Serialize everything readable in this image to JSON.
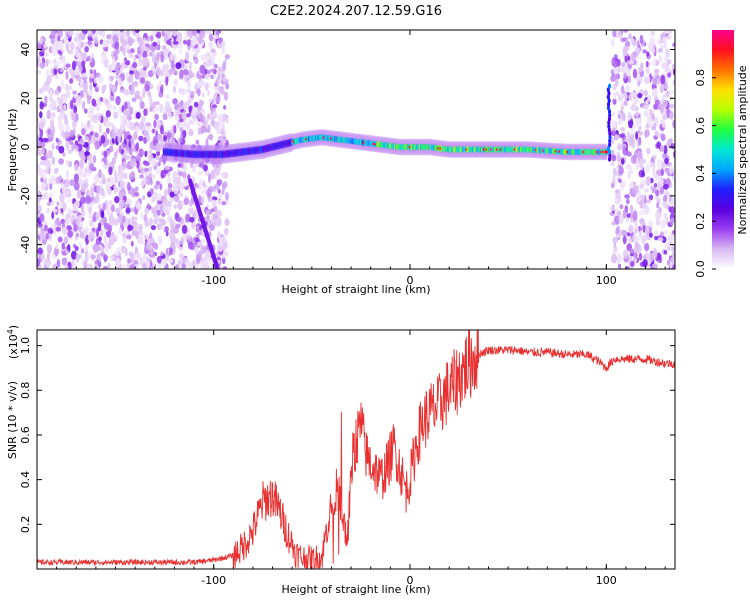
{
  "figure_title": "C2E2.2024.207.12.59.G16",
  "chart_data": [
    {
      "type": "heatmap",
      "title": "",
      "xlabel": "Height of straight line (km)",
      "ylabel": "Frequency (Hz)",
      "xlim": [
        -190,
        135
      ],
      "ylim": [
        -50,
        48
      ],
      "xticks": [
        -100,
        0,
        100
      ],
      "xtick_labels": [
        "-100",
        "0",
        "100"
      ],
      "yticks": [
        -40,
        -20,
        0,
        20,
        40
      ],
      "ytick_labels": [
        "-40",
        "-20",
        "0",
        "20",
        "40"
      ],
      "colorbar": {
        "label": "Normalized spectral amplitude",
        "range": [
          0,
          1
        ],
        "ticks": [
          0.0,
          0.2,
          0.4,
          0.6,
          0.8
        ],
        "tick_labels": [
          "0.0",
          "0.2",
          "0.4",
          "0.6",
          "0.8"
        ],
        "colormap": [
          "#ffffff",
          "#d9b8f2",
          "#9a3ff0",
          "#5a00e0",
          "#1f1fff",
          "#00a8ff",
          "#00e8d0",
          "#20ff40",
          "#b8ff00",
          "#ffe000",
          "#ff7000",
          "#ff1020",
          "#ff0090"
        ]
      },
      "ridge": {
        "x": [
          -125,
          -110,
          -95,
          -85,
          -75,
          -65,
          -55,
          -45,
          -35,
          -25,
          -15,
          -5,
          0,
          10,
          20,
          40,
          60,
          80,
          95,
          100
        ],
        "y": [
          -2,
          -3,
          -3,
          -2,
          -1,
          1,
          3,
          4,
          3,
          2,
          1,
          0,
          0,
          0,
          -1,
          -1,
          -1,
          -2,
          -2,
          -2
        ]
      },
      "grid": false,
      "legend": "none"
    },
    {
      "type": "line",
      "title": "",
      "xlabel": "Height of straight line (km)",
      "ylabel": "SNR (10 * v/v)",
      "ylabel_multiplier": "(x10",
      "ylabel_multiplier_exp": "4",
      "ylabel_multiplier_close": ")",
      "xlim": [
        -190,
        135
      ],
      "ylim": [
        0,
        1.07
      ],
      "xticks": [
        -100,
        0,
        100
      ],
      "xtick_labels": [
        "-100",
        "0",
        "100"
      ],
      "yticks": [
        0.2,
        0.4,
        0.6,
        0.8,
        1.0
      ],
      "ytick_labels": [
        "0.2",
        "0.4",
        "0.6",
        "0.8",
        "1.0"
      ],
      "series_color": "#e83030",
      "series": [
        {
          "x": [
            -190,
            -170,
            -150,
            -130,
            -110,
            -100,
            -90,
            -85,
            -80,
            -75,
            -70,
            -66,
            -62,
            -58,
            -55,
            -50,
            -45,
            -42,
            -38,
            -35,
            -32,
            -30,
            -28,
            -25,
            -22,
            -18,
            -15,
            -12,
            -8,
            -5,
            -2,
            0,
            3,
            6,
            10,
            14,
            18,
            22,
            28,
            34,
            40,
            45,
            50,
            55,
            60,
            70,
            80,
            90,
            96,
            100,
            104,
            110,
            120,
            130,
            135
          ],
          "y": [
            0.03,
            0.03,
            0.03,
            0.03,
            0.03,
            0.04,
            0.06,
            0.1,
            0.17,
            0.3,
            0.33,
            0.25,
            0.15,
            0.07,
            0.05,
            0.04,
            0.05,
            0.2,
            0.36,
            0.3,
            0.1,
            0.45,
            0.55,
            0.65,
            0.5,
            0.45,
            0.4,
            0.45,
            0.55,
            0.45,
            0.35,
            0.4,
            0.55,
            0.65,
            0.7,
            0.72,
            0.78,
            0.82,
            0.9,
            0.96,
            0.98,
            0.98,
            0.98,
            0.98,
            0.97,
            0.97,
            0.96,
            0.96,
            0.93,
            0.9,
            0.94,
            0.94,
            0.94,
            0.92,
            0.92
          ]
        }
      ],
      "grid": false,
      "legend": "none"
    }
  ]
}
